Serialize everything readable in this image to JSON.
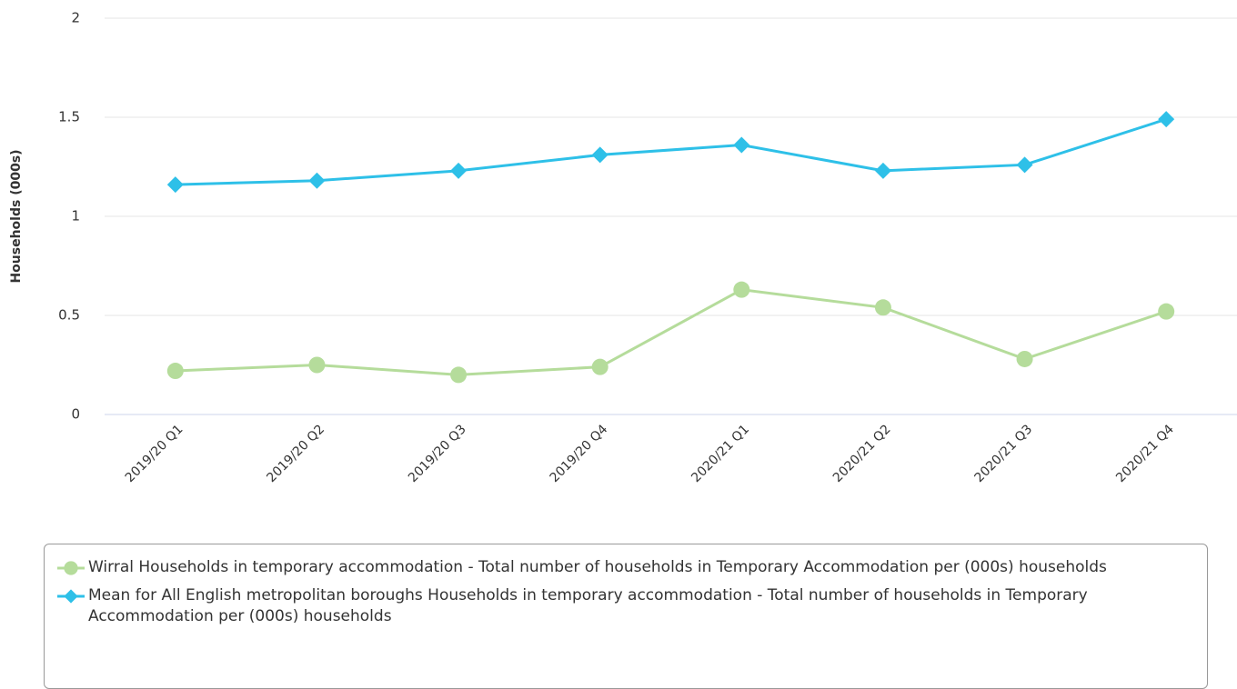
{
  "chart_data": {
    "type": "line",
    "y_label": "Households (000s)",
    "categories": [
      "2019/20 Q1",
      "2019/20 Q2",
      "2019/20 Q3",
      "2019/20 Q4",
      "2020/21 Q1",
      "2020/21 Q2",
      "2020/21 Q3",
      "2020/21 Q4"
    ],
    "series": [
      {
        "name": "Wirral Households in temporary accommodation - Total number of households in Temporary Accommodation per (000s) households",
        "color": "#b5dc9b",
        "marker": "circle",
        "values": [
          0.22,
          0.25,
          0.2,
          0.24,
          0.63,
          0.54,
          0.28,
          0.52
        ]
      },
      {
        "name": "Mean for All English metropolitan boroughs Households in temporary accommodation - Total number of households in Temporary Accommodation per (000s) households",
        "color": "#2ec0e8",
        "marker": "diamond",
        "values": [
          1.16,
          1.18,
          1.23,
          1.31,
          1.36,
          1.23,
          1.26,
          1.49
        ]
      }
    ],
    "ylim": [
      0,
      2
    ],
    "yticks": [
      0,
      0.5,
      1,
      1.5,
      2
    ],
    "grid": true,
    "legend": "bottom"
  }
}
